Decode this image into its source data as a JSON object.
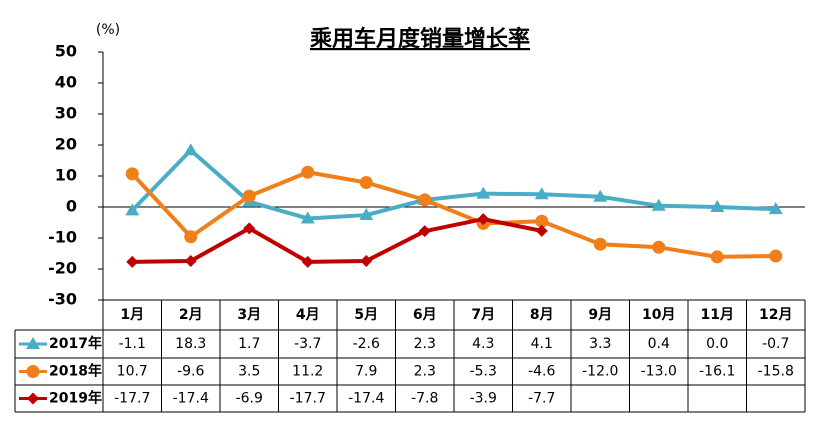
{
  "chart_data": {
    "type": "line",
    "title": "乘用车月度销量增长率",
    "y_label": "(%)",
    "categories": [
      "1月",
      "2月",
      "3月",
      "4月",
      "5月",
      "6月",
      "7月",
      "8月",
      "9月",
      "10月",
      "11月",
      "12月"
    ],
    "ylim": [
      -30,
      50
    ],
    "yticks": [
      -30,
      -20,
      -10,
      0,
      10,
      20,
      30,
      40,
      50
    ],
    "series": [
      {
        "name": "2017年",
        "color": "#4bacc6",
        "marker": "triangle",
        "values": [
          -1.1,
          18.3,
          1.7,
          -3.7,
          -2.6,
          2.3,
          4.3,
          4.1,
          3.3,
          0.4,
          0.0,
          -0.7
        ],
        "value_labels": [
          "-1.1",
          "18.3",
          "1.7",
          "-3.7",
          "-2.6",
          "2.3",
          "4.3",
          "4.1",
          "3.3",
          "0.4",
          "0.0",
          "-0.7"
        ]
      },
      {
        "name": "2018年",
        "color": "#f07f1a",
        "marker": "circle",
        "values": [
          10.7,
          -9.6,
          3.5,
          11.2,
          7.9,
          2.3,
          -5.3,
          -4.6,
          -12.0,
          -13.0,
          -16.1,
          -15.8
        ],
        "value_labels": [
          "10.7",
          "-9.6",
          "3.5",
          "11.2",
          "7.9",
          "2.3",
          "-5.3",
          "-4.6",
          "-12.0",
          "-13.0",
          "-16.1",
          "-15.8"
        ]
      },
      {
        "name": "2019年",
        "color": "#c00000",
        "marker": "diamond",
        "values": [
          -17.7,
          -17.4,
          -6.9,
          -17.7,
          -17.4,
          -7.8,
          -3.9,
          -7.7,
          null,
          null,
          null,
          null
        ],
        "value_labels": [
          "-17.7",
          "-17.4",
          "-6.9",
          "-17.7",
          "-17.4",
          "-7.8",
          "-3.9",
          "-7.7",
          null,
          null,
          null,
          null
        ]
      }
    ]
  }
}
